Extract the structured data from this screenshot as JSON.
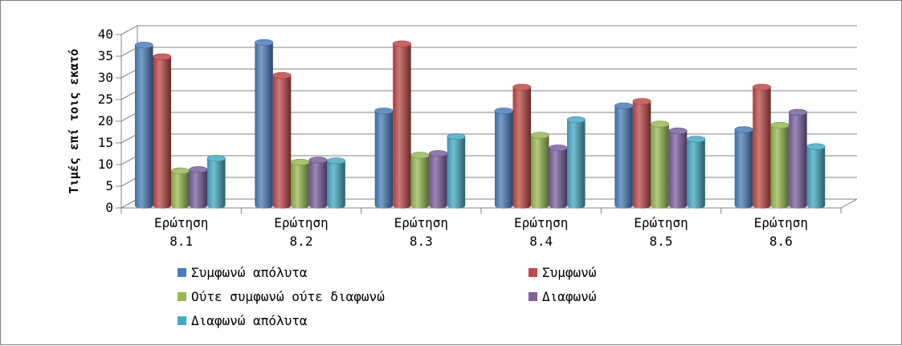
{
  "chart_data": {
    "type": "bar",
    "categories": [
      "Ερώτηση 8.1",
      "Ερώτηση 8.2",
      "Ερώτηση 8.3",
      "Ερώτηση 8.4",
      "Ερώτηση 8.5",
      "Ερώτηση 8.6"
    ],
    "category_lines": [
      [
        "Ερώτηση",
        "8.1"
      ],
      [
        "Ερώτηση",
        "8.2"
      ],
      [
        "Ερώτηση",
        "8.3"
      ],
      [
        "Ερώτηση",
        "8.4"
      ],
      [
        "Ερώτηση",
        "8.5"
      ],
      [
        "Ερώτηση",
        "8.6"
      ]
    ],
    "series": [
      {
        "name": "Συμφωνώ απόλυτα",
        "color": "#4a7ebb",
        "values": [
          37.0,
          37.6,
          21.8,
          21.8,
          23.0,
          17.5
        ]
      },
      {
        "name": "Συμφωνώ",
        "color": "#be4b48",
        "values": [
          34.3,
          30.0,
          37.3,
          27.3,
          24.0,
          27.3
        ]
      },
      {
        "name": "Ούτε συμφωνώ ούτε διαφωνώ",
        "color": "#98b954",
        "values": [
          8.0,
          10.0,
          11.6,
          16.2,
          18.8,
          18.5
        ]
      },
      {
        "name": "Διαφωνώ",
        "color": "#7d60a0",
        "values": [
          8.3,
          10.5,
          12.0,
          13.3,
          17.2,
          21.5
        ]
      },
      {
        "name": "Διαφωνώ απόλυτα",
        "color": "#46aac5",
        "values": [
          10.9,
          10.3,
          15.9,
          19.8,
          15.3,
          13.6
        ]
      }
    ],
    "ylabel": "Τιμές επί τοις εκατό",
    "xlabel": "",
    "ylim": [
      0,
      40
    ],
    "yticks": [
      0,
      5,
      10,
      15,
      20,
      25,
      30,
      35,
      40
    ],
    "grid": true,
    "legend": "bottom",
    "style": "3d-cylinder"
  }
}
